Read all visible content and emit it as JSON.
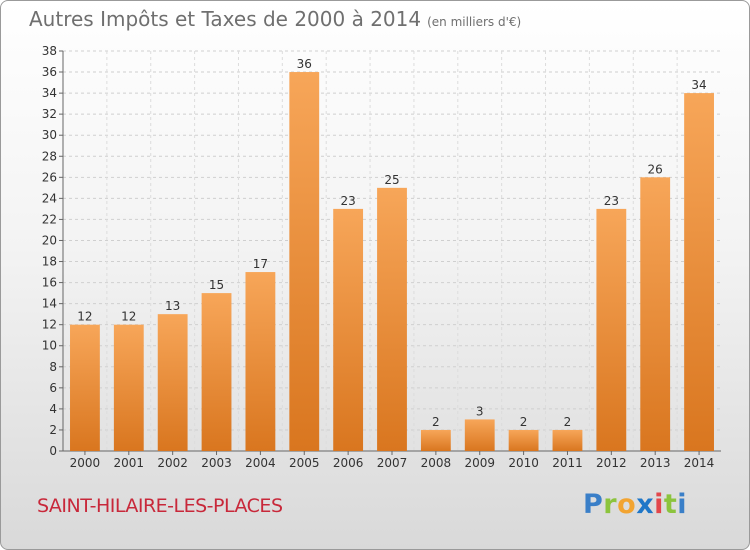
{
  "header": {
    "title": "Autres Impôts et Taxes de 2000 à 2014",
    "unit": "(en milliers d'€)"
  },
  "footer": {
    "place": "SAINT-HILAIRE-LES-PLACES",
    "logo": "Proxiti"
  },
  "colors": {
    "bar_light": "#f7a659",
    "bar_dark": "#d9761f",
    "title": "#6f6f6f",
    "place": "#c8283a"
  },
  "chart_data": {
    "type": "bar",
    "title": "Autres Impôts et Taxes de 2000 à 2014",
    "subtitle": "(en milliers d'€)",
    "categories": [
      "2000",
      "2001",
      "2002",
      "2003",
      "2004",
      "2005",
      "2006",
      "2007",
      "2008",
      "2009",
      "2010",
      "2011",
      "2012",
      "2013",
      "2014"
    ],
    "values": [
      12,
      12,
      13,
      15,
      17,
      36,
      23,
      25,
      2,
      3,
      2,
      2,
      23,
      26,
      34
    ],
    "ylim": [
      0,
      38
    ],
    "yticks": [
      0,
      2,
      4,
      6,
      8,
      10,
      12,
      14,
      16,
      18,
      20,
      22,
      24,
      26,
      28,
      30,
      32,
      34,
      36,
      38
    ],
    "grid": true,
    "data_labels": true
  }
}
